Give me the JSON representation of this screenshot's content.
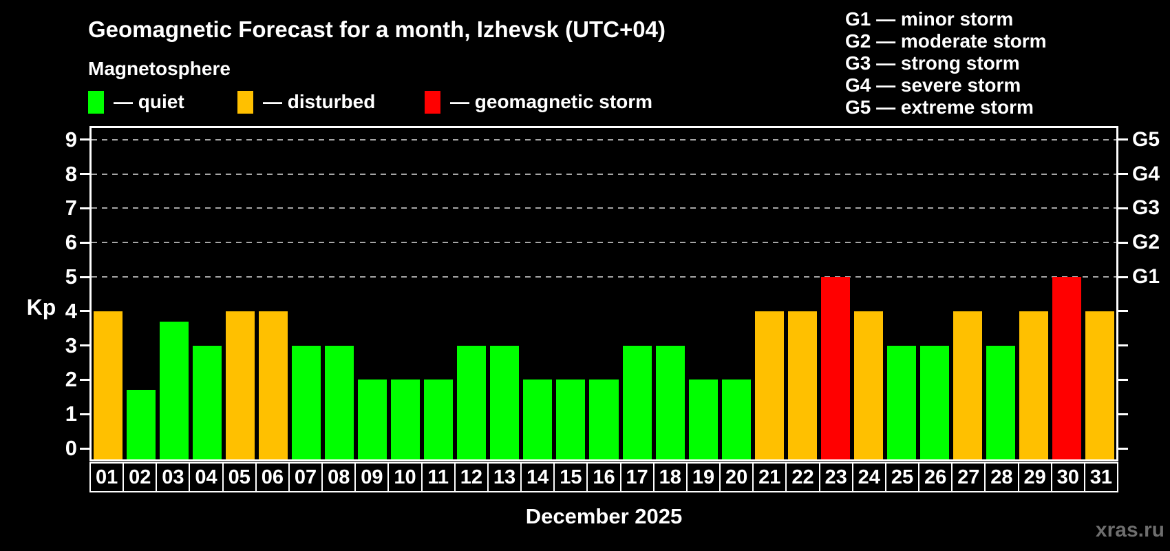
{
  "header": {
    "title": "Geomagnetic Forecast for a month, Izhevsk (UTC+04)",
    "subtitle": "Magnetosphere",
    "legend": [
      {
        "name": "quiet",
        "label": "— quiet",
        "color": "#00ff00"
      },
      {
        "name": "disturbed",
        "label": "— disturbed",
        "color": "#ffc000"
      },
      {
        "name": "storm",
        "label": "— geomagnetic storm",
        "color": "#ff0000"
      }
    ],
    "g_scale_legend": [
      "G1 — minor storm",
      "G2 — moderate storm",
      "G3 — strong storm",
      "G4 — severe storm",
      "G5 — extreme storm"
    ]
  },
  "watermark": "xras.ru",
  "chart_data": {
    "type": "bar",
    "title": "Geomagnetic Forecast for a month, Izhevsk (UTC+04)",
    "xlabel": "December 2025",
    "ylabel": "Kp",
    "ylim": [
      0,
      9.3
    ],
    "y_ticks": [
      0,
      1,
      2,
      3,
      4,
      5,
      6,
      7,
      8,
      9
    ],
    "gridlines_at": [
      5,
      6,
      7,
      8,
      9
    ],
    "grid_style": "dashed",
    "right_axis_labels": [
      {
        "kp": 5,
        "label": "G1"
      },
      {
        "kp": 6,
        "label": "G2"
      },
      {
        "kp": 7,
        "label": "G3"
      },
      {
        "kp": 8,
        "label": "G4"
      },
      {
        "kp": 9,
        "label": "G5"
      }
    ],
    "categories": [
      "01",
      "02",
      "03",
      "04",
      "05",
      "06",
      "07",
      "08",
      "09",
      "10",
      "11",
      "12",
      "13",
      "14",
      "15",
      "16",
      "17",
      "18",
      "19",
      "20",
      "21",
      "22",
      "23",
      "24",
      "25",
      "26",
      "27",
      "28",
      "29",
      "30",
      "31"
    ],
    "values": [
      4,
      1.7,
      3.7,
      3,
      4,
      4,
      3,
      3,
      2,
      2,
      2,
      3,
      3,
      2,
      2,
      2,
      3,
      3,
      2,
      2,
      4,
      4,
      5,
      4,
      3,
      3,
      4,
      3,
      4,
      5,
      4
    ],
    "statuses": [
      "disturbed",
      "quiet",
      "quiet",
      "quiet",
      "disturbed",
      "disturbed",
      "quiet",
      "quiet",
      "quiet",
      "quiet",
      "quiet",
      "quiet",
      "quiet",
      "quiet",
      "quiet",
      "quiet",
      "quiet",
      "quiet",
      "quiet",
      "quiet",
      "disturbed",
      "disturbed",
      "storm",
      "disturbed",
      "quiet",
      "quiet",
      "disturbed",
      "quiet",
      "disturbed",
      "storm",
      "disturbed"
    ],
    "status_colors": {
      "quiet": "#00ff00",
      "disturbed": "#ffc000",
      "storm": "#ff0000"
    },
    "colors": {
      "background": "#000000",
      "axis": "#ffffff",
      "grid": "#a6a6a6",
      "text": "#ffffff",
      "watermark": "#6e6e6e"
    }
  }
}
